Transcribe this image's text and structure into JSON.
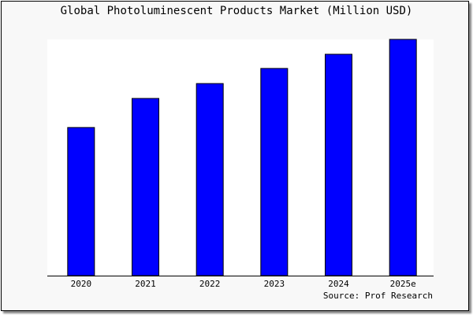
{
  "chart_data": {
    "type": "bar",
    "title": "Global Photoluminescent Products Market (Million USD)",
    "categories": [
      "2020",
      "2021",
      "2022",
      "2023",
      "2024",
      "2025e"
    ],
    "values": [
      62.7,
      75.0,
      81.3,
      87.7,
      93.7,
      100.0
    ],
    "xlabel": "",
    "ylabel": "",
    "ylim": [
      0,
      100
    ],
    "grid": false,
    "source": "Source: Prof Research",
    "colors": {
      "bar": "#0000ff",
      "bar_edge": "#000000",
      "plot_bg": "#ffffff",
      "frame_bg": "#f8f8f8"
    }
  }
}
